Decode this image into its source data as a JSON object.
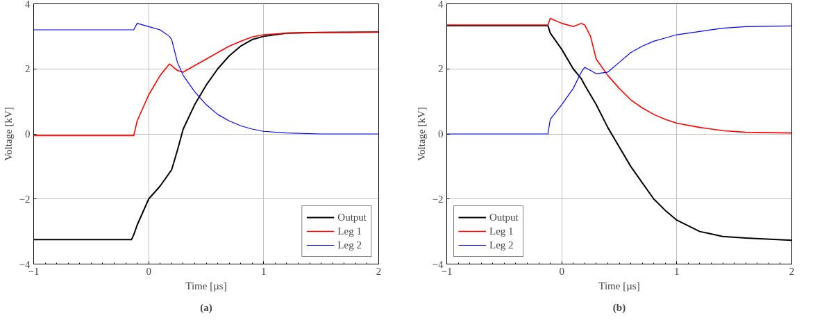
{
  "chart_data": [
    {
      "type": "line",
      "xlabel": "Time [µs]",
      "ylabel": "Voltage [kV]",
      "annotations": [
        "(a)"
      ],
      "xlim": [
        -1,
        2
      ],
      "ylim": [
        -4,
        4
      ],
      "xticks": [
        -1,
        0,
        1,
        2
      ],
      "yticks": [
        -4,
        -2,
        0,
        2,
        4
      ],
      "grid": true,
      "legend": "bottom right",
      "line_style": "solid",
      "marker": "none",
      "x": [
        -1,
        -0.5,
        -0.15,
        -0.13,
        -0.1,
        0,
        0.1,
        0.18,
        0.2,
        0.25,
        0.3,
        0.4,
        0.5,
        0.6,
        0.7,
        0.8,
        0.9,
        1.0,
        1.2,
        1.5,
        2
      ],
      "series": [
        {
          "name": "Output",
          "color": "#000000",
          "values": [
            -3.25,
            -3.25,
            -3.25,
            -3.1,
            -2.8,
            -2.0,
            -1.6,
            -1.2,
            -1.1,
            -0.5,
            0.15,
            0.9,
            1.5,
            2.0,
            2.4,
            2.7,
            2.9,
            3.0,
            3.1,
            3.12,
            3.13
          ]
        },
        {
          "name": "Leg 1",
          "color": "#ff0000",
          "values": [
            -0.05,
            -0.05,
            -0.05,
            -0.05,
            0.4,
            1.2,
            1.8,
            2.15,
            2.1,
            1.95,
            1.9,
            2.1,
            2.3,
            2.5,
            2.7,
            2.85,
            2.98,
            3.05,
            3.1,
            3.12,
            3.13
          ]
        },
        {
          "name": "Leg 2",
          "color": "#0000ff",
          "values": [
            3.2,
            3.2,
            3.2,
            3.2,
            3.4,
            3.3,
            3.2,
            3.0,
            2.9,
            2.2,
            1.8,
            1.3,
            0.9,
            0.6,
            0.4,
            0.25,
            0.15,
            0.08,
            0.03,
            0.0,
            0.0
          ]
        }
      ]
    },
    {
      "type": "line",
      "xlabel": "Time [µs]",
      "ylabel": "Voltage [kV]",
      "annotations": [
        "(b)"
      ],
      "xlim": [
        -1,
        2
      ],
      "ylim": [
        -4,
        4
      ],
      "xticks": [
        -1,
        0,
        1,
        2
      ],
      "yticks": [
        -4,
        -2,
        0,
        2,
        4
      ],
      "grid": true,
      "legend": "bottom left",
      "line_style": "solid",
      "marker": "none",
      "x": [
        -1,
        -0.5,
        -0.12,
        -0.1,
        0,
        0.1,
        0.17,
        0.2,
        0.25,
        0.3,
        0.4,
        0.5,
        0.6,
        0.7,
        0.8,
        0.9,
        1.0,
        1.2,
        1.4,
        1.6,
        2
      ],
      "series": [
        {
          "name": "Output",
          "color": "#000000",
          "values": [
            3.33,
            3.33,
            3.33,
            3.1,
            2.6,
            2.0,
            1.7,
            1.5,
            1.2,
            0.9,
            0.2,
            -0.4,
            -1.0,
            -1.5,
            -2.0,
            -2.35,
            -2.65,
            -3.0,
            -3.15,
            -3.2,
            -3.27
          ]
        },
        {
          "name": "Leg 1",
          "color": "#ff0000",
          "values": [
            3.35,
            3.35,
            3.35,
            3.55,
            3.4,
            3.3,
            3.4,
            3.35,
            3.0,
            2.3,
            1.8,
            1.4,
            1.05,
            0.8,
            0.6,
            0.45,
            0.33,
            0.2,
            0.1,
            0.05,
            0.03
          ]
        },
        {
          "name": "Leg 2",
          "color": "#0000ff",
          "values": [
            0.0,
            0.0,
            0.0,
            0.45,
            0.9,
            1.4,
            1.9,
            2.05,
            1.95,
            1.85,
            1.9,
            2.2,
            2.5,
            2.7,
            2.85,
            2.95,
            3.05,
            3.15,
            3.25,
            3.3,
            3.32
          ]
        }
      ]
    }
  ]
}
